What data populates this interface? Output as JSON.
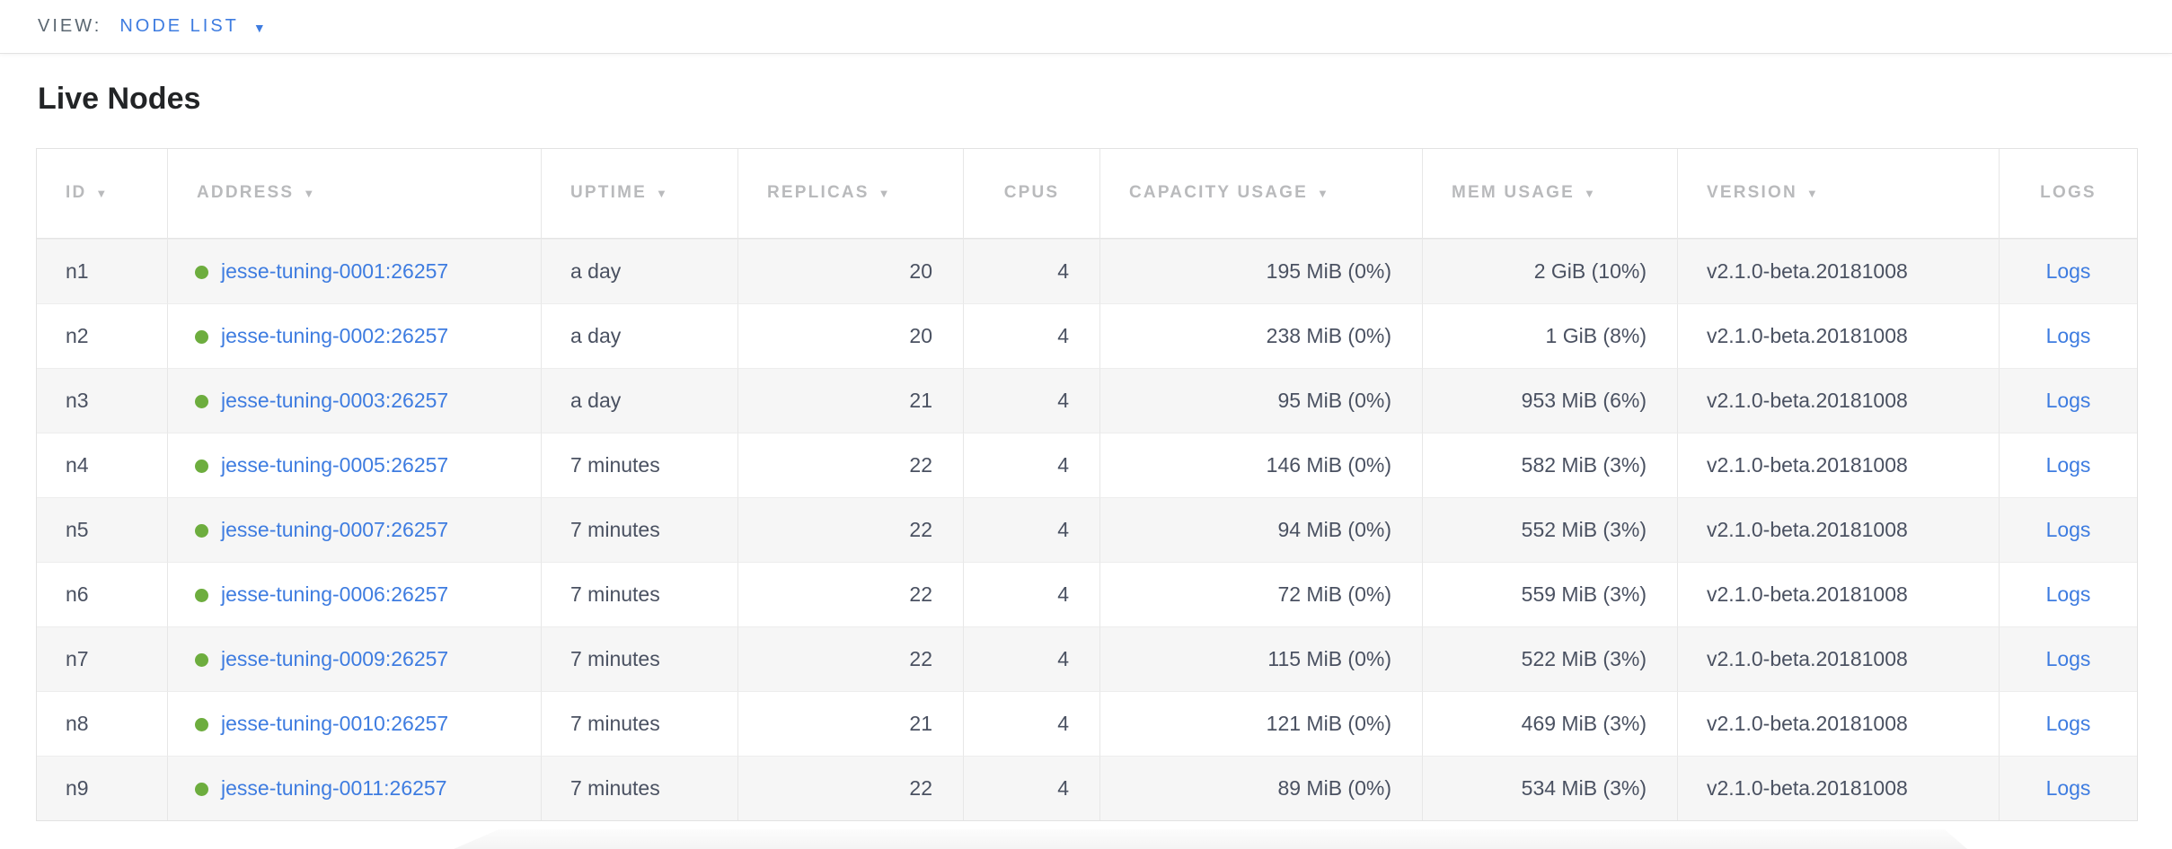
{
  "view_bar": {
    "label": "VIEW:",
    "selected": "NODE LIST"
  },
  "page": {
    "title": "Live Nodes"
  },
  "icons": {
    "dropdown_caret": "▼",
    "sort_caret": "▼"
  },
  "colors": {
    "accent-blue": "#3e7ce0",
    "status-green": "#6dad3e",
    "header-gray": "#b9babc",
    "text-dark": "#4a5161",
    "row-stripe": "#f6f6f6",
    "topbar-text": "#5b6771"
  },
  "table": {
    "columns": [
      {
        "label": "ID",
        "sortable": true
      },
      {
        "label": "ADDRESS",
        "sortable": true
      },
      {
        "label": "UPTIME",
        "sortable": true
      },
      {
        "label": "REPLICAS",
        "sortable": true
      },
      {
        "label": "CPUS",
        "sortable": false
      },
      {
        "label": "CAPACITY USAGE",
        "sortable": true
      },
      {
        "label": "MEM USAGE",
        "sortable": true
      },
      {
        "label": "VERSION",
        "sortable": true
      },
      {
        "label": "LOGS",
        "sortable": false
      }
    ],
    "rows": [
      {
        "id": "n1",
        "address": "jesse-tuning-0001:26257",
        "uptime": "a day",
        "replicas": "20",
        "cpus": "4",
        "capacity": "195 MiB (0%)",
        "mem": "2 GiB (10%)",
        "version": "v2.1.0-beta.20181008",
        "logs": "Logs"
      },
      {
        "id": "n2",
        "address": "jesse-tuning-0002:26257",
        "uptime": "a day",
        "replicas": "20",
        "cpus": "4",
        "capacity": "238 MiB (0%)",
        "mem": "1 GiB (8%)",
        "version": "v2.1.0-beta.20181008",
        "logs": "Logs"
      },
      {
        "id": "n3",
        "address": "jesse-tuning-0003:26257",
        "uptime": "a day",
        "replicas": "21",
        "cpus": "4",
        "capacity": "95 MiB (0%)",
        "mem": "953 MiB (6%)",
        "version": "v2.1.0-beta.20181008",
        "logs": "Logs"
      },
      {
        "id": "n4",
        "address": "jesse-tuning-0005:26257",
        "uptime": "7 minutes",
        "replicas": "22",
        "cpus": "4",
        "capacity": "146 MiB (0%)",
        "mem": "582 MiB (3%)",
        "version": "v2.1.0-beta.20181008",
        "logs": "Logs"
      },
      {
        "id": "n5",
        "address": "jesse-tuning-0007:26257",
        "uptime": "7 minutes",
        "replicas": "22",
        "cpus": "4",
        "capacity": "94 MiB (0%)",
        "mem": "552 MiB (3%)",
        "version": "v2.1.0-beta.20181008",
        "logs": "Logs"
      },
      {
        "id": "n6",
        "address": "jesse-tuning-0006:26257",
        "uptime": "7 minutes",
        "replicas": "22",
        "cpus": "4",
        "capacity": "72 MiB (0%)",
        "mem": "559 MiB (3%)",
        "version": "v2.1.0-beta.20181008",
        "logs": "Logs"
      },
      {
        "id": "n7",
        "address": "jesse-tuning-0009:26257",
        "uptime": "7 minutes",
        "replicas": "22",
        "cpus": "4",
        "capacity": "115 MiB (0%)",
        "mem": "522 MiB (3%)",
        "version": "v2.1.0-beta.20181008",
        "logs": "Logs"
      },
      {
        "id": "n8",
        "address": "jesse-tuning-0010:26257",
        "uptime": "7 minutes",
        "replicas": "21",
        "cpus": "4",
        "capacity": "121 MiB (0%)",
        "mem": "469 MiB (3%)",
        "version": "v2.1.0-beta.20181008",
        "logs": "Logs"
      },
      {
        "id": "n9",
        "address": "jesse-tuning-0011:26257",
        "uptime": "7 minutes",
        "replicas": "22",
        "cpus": "4",
        "capacity": "89 MiB (0%)",
        "mem": "534 MiB (3%)",
        "version": "v2.1.0-beta.20181008",
        "logs": "Logs"
      }
    ]
  }
}
